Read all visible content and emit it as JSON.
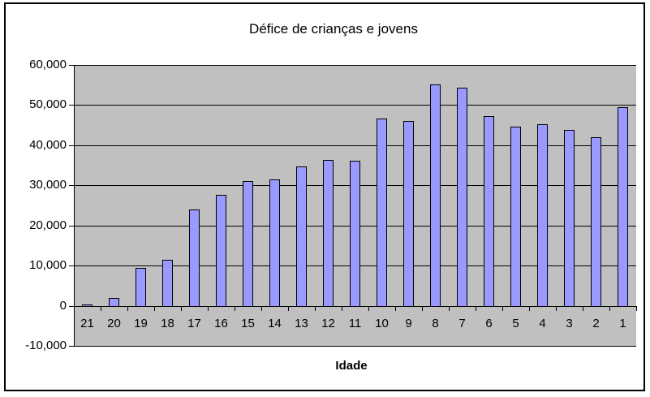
{
  "chart_data": {
    "type": "bar",
    "title": "Défice de crianças e jovens",
    "xlabel": "Idade",
    "ylabel": "",
    "categories": [
      "21",
      "20",
      "19",
      "18",
      "17",
      "16",
      "15",
      "14",
      "13",
      "12",
      "11",
      "10",
      "9",
      "8",
      "7",
      "6",
      "5",
      "4",
      "3",
      "2",
      "1"
    ],
    "values": [
      400,
      2000,
      9400,
      11500,
      23900,
      27700,
      31000,
      31500,
      34800,
      36400,
      36200,
      46600,
      46000,
      55200,
      54300,
      47200,
      44700,
      45300,
      43800,
      41900,
      49500
    ],
    "ylim": [
      -10000,
      60000
    ],
    "y_tick_step": 10000,
    "y_tick_labels": [
      "60,000",
      "50,000",
      "40,000",
      "30,000",
      "20,000",
      "10,000",
      "0",
      "-10,000"
    ],
    "grid": true,
    "legend": false,
    "colors": {
      "bar_fill": "#9999FF",
      "bar_border": "#000000",
      "plot_bg": "#C0C0C0",
      "chart_bg": "#FFFFFF",
      "gridline": "#000000",
      "text": "#000000"
    }
  }
}
